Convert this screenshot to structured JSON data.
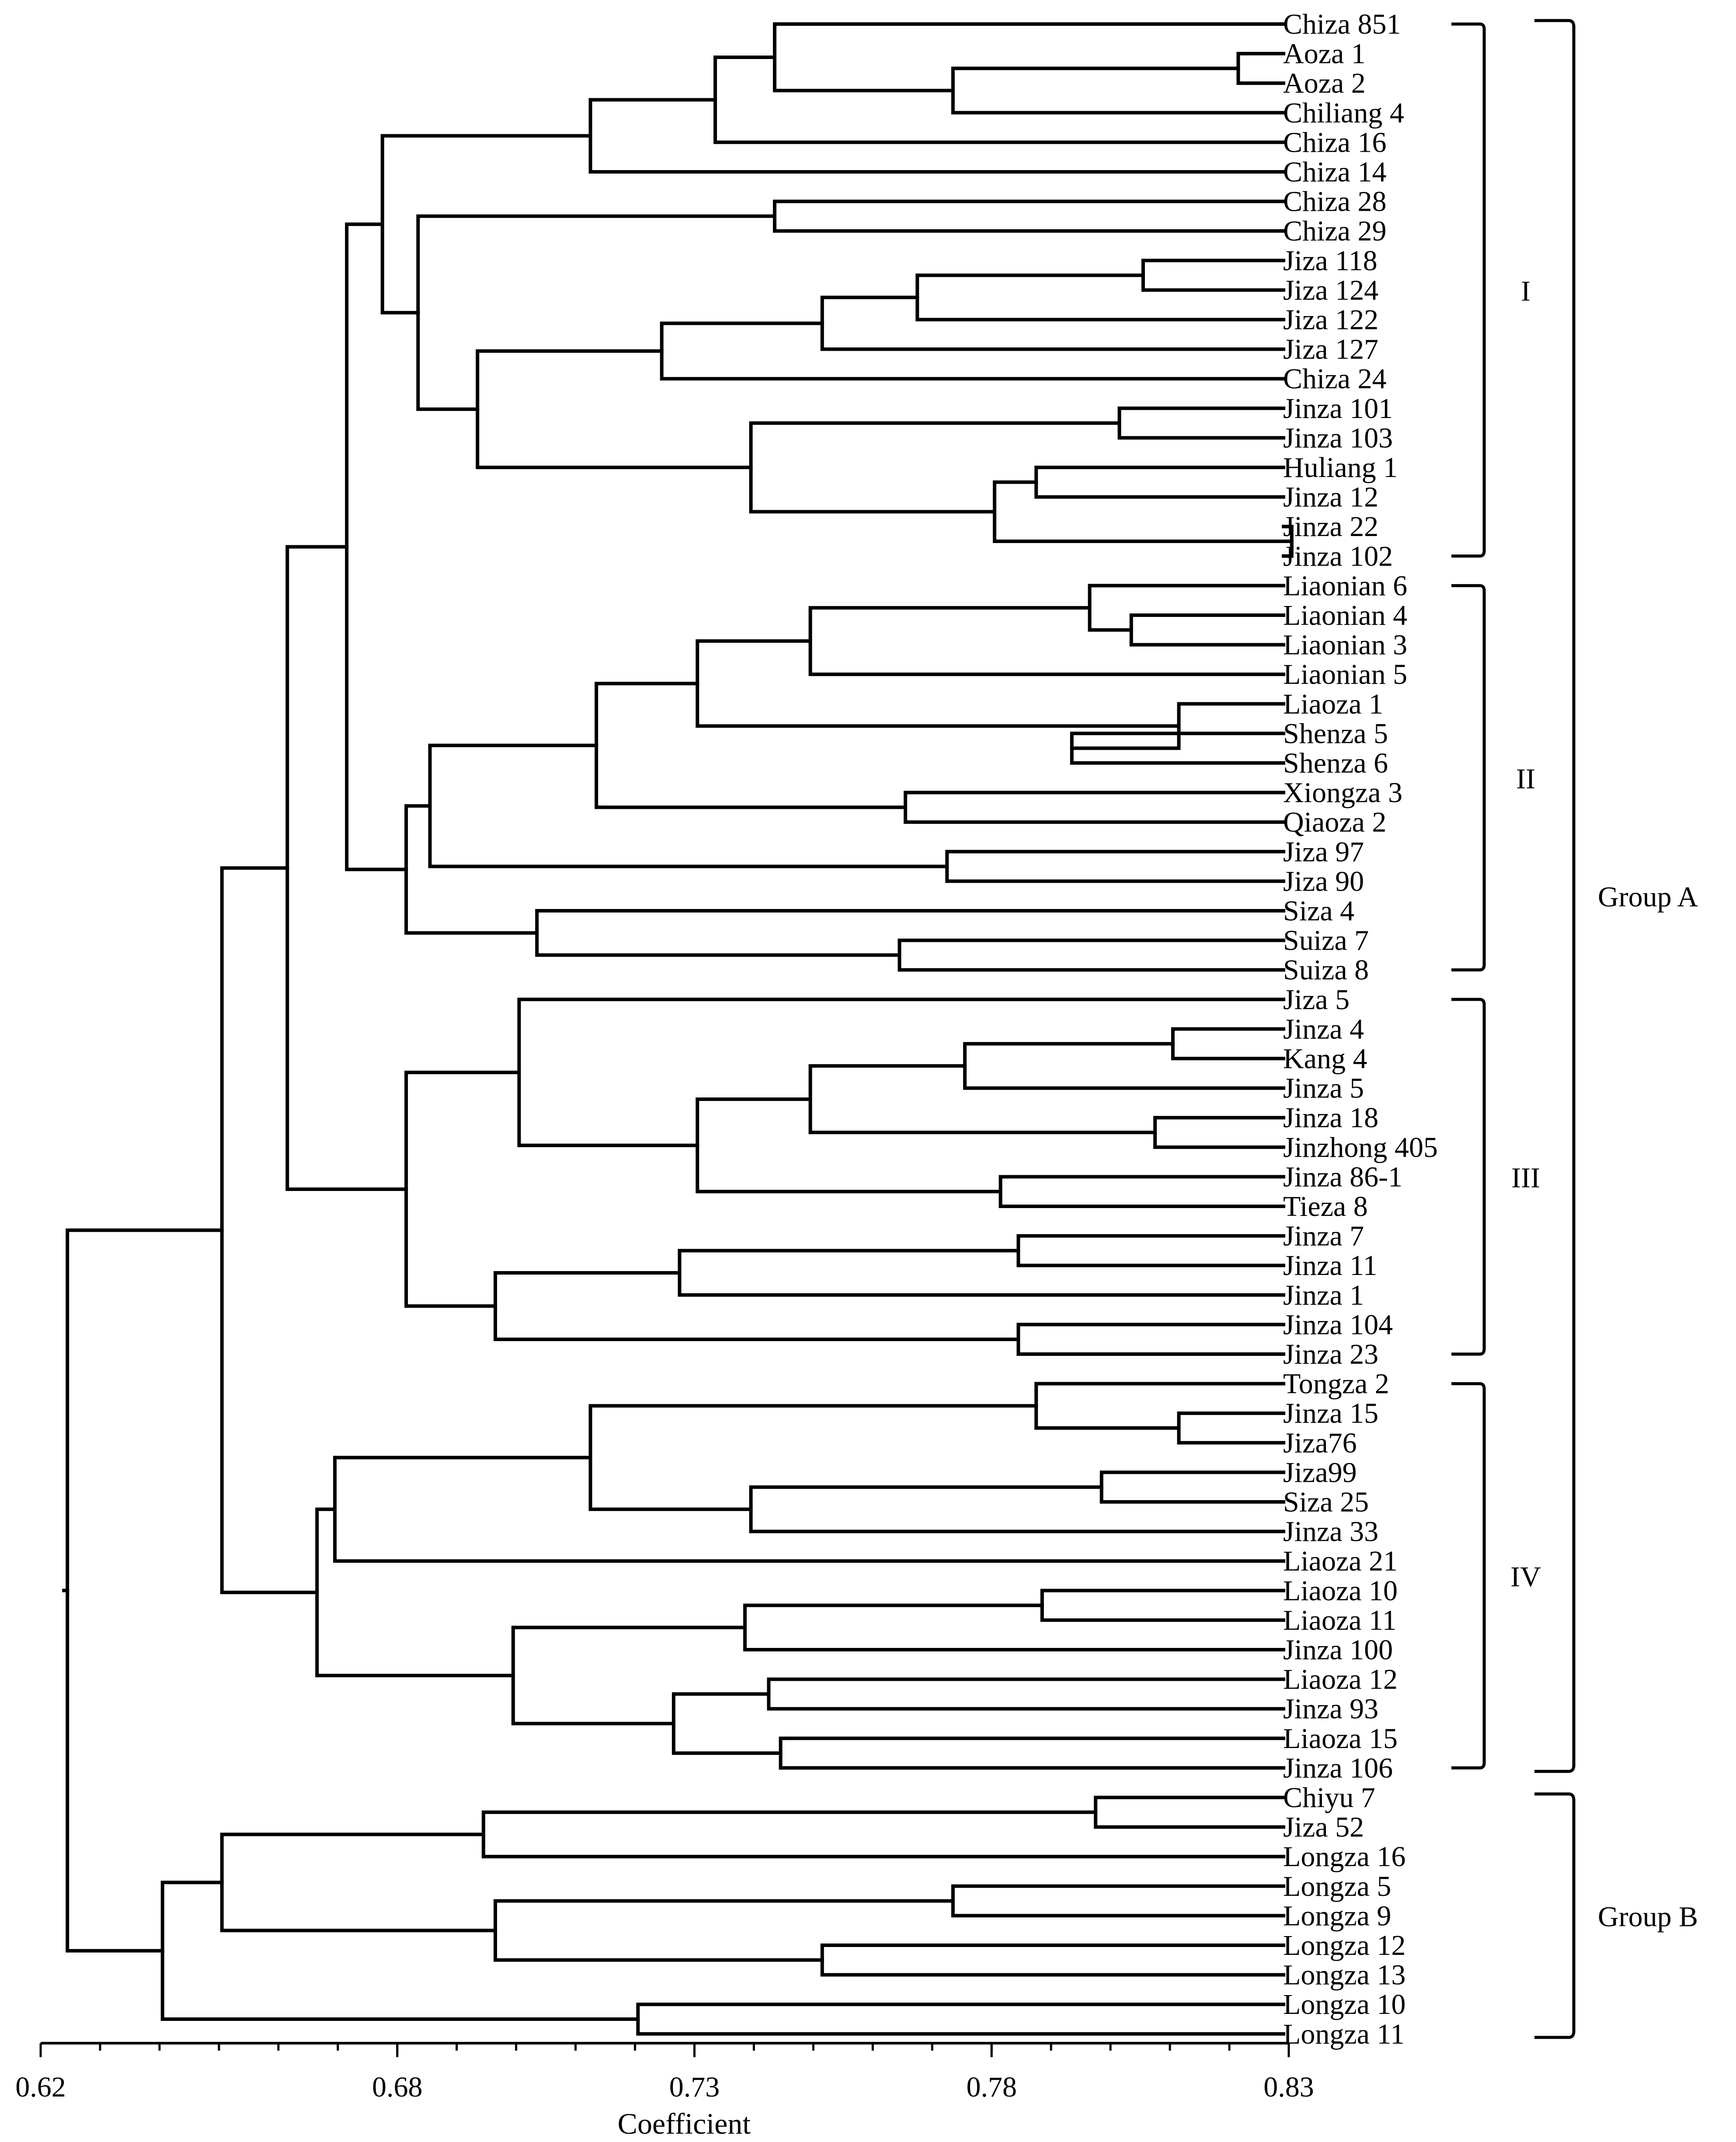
{
  "chart_data": {
    "type": "dendrogram",
    "xlabel": "Coefficient",
    "xlim": [
      0.62,
      0.83
    ],
    "ticks": [
      0.62,
      0.68,
      0.73,
      0.78,
      0.83
    ],
    "tick_labels": [
      "0.62",
      "0.68",
      "0.73",
      "0.78",
      "0.83"
    ],
    "leaves": [
      "Chiza 851",
      "Aoza 1",
      "Aoza 2",
      "Chiliang 4",
      "Chiza 16",
      "Chiza 14",
      "Chiza 28",
      "Chiza 29",
      "Jiza 118",
      "Jiza 124",
      "Jiza 122",
      "Jiza 127",
      "Chiza 24",
      "Jinza 101",
      "Jinza 103",
      "Huliang 1",
      "Jinza 12",
      "Jinza 22",
      "Jinza 102",
      "Liaonian 6",
      "Liaonian 4",
      "Liaonian 3",
      "Liaonian 5",
      "Liaoza 1",
      "Shenza 5",
      "Shenza 6",
      "Xiongza 3",
      "Qiaoza 2",
      "Jiza 97",
      "Jiza 90",
      "Siza 4",
      "Suiza 7",
      "Suiza 8",
      "Jiza 5",
      "Jinza 4",
      "Kang 4",
      "Jinza 5",
      "Jinza 18",
      "Jinzhong 405",
      "Jinza 86-1",
      "Tieza 8",
      "Jinza 7",
      "Jinza 11",
      "Jinza 1",
      "Jinza 104",
      "Jinza 23",
      "Tongza 2",
      "Jinza 15",
      "Jiza76",
      "Jiza99",
      "Siza 25",
      "Jinza 33",
      "Liaoza 21",
      "Liaoza 10",
      "Liaoza 11",
      "Jinza 100",
      "Liaoza 12",
      "Jinza 93",
      "Liaoza 15",
      "Jinza 106",
      "Chiyu 7",
      "Jiza 52",
      "Longza 16",
      "Longza 5",
      "Longza 9",
      "Longza 12",
      "Longza 13",
      "Longza 10",
      "Longza 11"
    ],
    "merges": [
      {
        "a": "L1",
        "b": "L2",
        "h": 0.8215,
        "id": "n_ao"
      },
      {
        "a": "n_ao",
        "b": "L3",
        "h": 0.7735,
        "id": "n_aoch"
      },
      {
        "a": "L0",
        "b": "n_aoch",
        "h": 0.7435,
        "id": "n_c851"
      },
      {
        "a": "n_c851",
        "b": "L4",
        "h": 0.7335,
        "id": "n_c16"
      },
      {
        "a": "n_c16",
        "b": "L5",
        "h": 0.7125,
        "id": "n_c14"
      },
      {
        "a": "L6",
        "b": "L7",
        "h": 0.7435,
        "id": "n_c28"
      },
      {
        "a": "L8",
        "b": "L9",
        "h": 0.8055,
        "id": "n_j118"
      },
      {
        "a": "n_j118",
        "b": "L10",
        "h": 0.7675,
        "id": "n_j122"
      },
      {
        "a": "n_j122",
        "b": "L11",
        "h": 0.7515,
        "id": "n_j127"
      },
      {
        "a": "n_j127",
        "b": "L12",
        "h": 0.7245,
        "id": "n_c24"
      },
      {
        "a": "L13",
        "b": "L14",
        "h": 0.8015,
        "id": "n_j101"
      },
      {
        "a": "L17",
        "b": "L18",
        "h": 0.8305,
        "id": "n_j22"
      },
      {
        "a": "L15",
        "b": "L16",
        "h": 0.7875,
        "id": "n_hu"
      },
      {
        "a": "n_hu",
        "b": "n_j22",
        "h": 0.7805,
        "id": "n_hj"
      },
      {
        "a": "n_j101",
        "b": "n_hj",
        "h": 0.7395,
        "id": "n_jinz"
      },
      {
        "a": "n_c24",
        "b": "n_jinz",
        "h": 0.6935,
        "id": "n_cj"
      },
      {
        "a": "n_c28",
        "b": "n_cj",
        "h": 0.6835,
        "id": "n_c28cj"
      },
      {
        "a": "n_c14",
        "b": "n_c28cj",
        "h": 0.6775,
        "id": "n_I"
      },
      {
        "a": "L20",
        "b": "L21",
        "h": 0.8035,
        "id": "n_ln4"
      },
      {
        "a": "L19",
        "b": "n_ln4",
        "h": 0.7965,
        "id": "n_ln6"
      },
      {
        "a": "n_ln6",
        "b": "L22",
        "h": 0.7495,
        "id": "n_ln5"
      },
      {
        "a": "L24",
        "b": "L25",
        "h": 0.7935,
        "id": "n_sh"
      },
      {
        "a": "L23",
        "b": "n_sh",
        "h": 0.8115,
        "id": "n_lzsh"
      },
      {
        "a": "n_ln5",
        "b": "n_lzsh",
        "h": 0.7305,
        "id": "n_lnall"
      },
      {
        "a": "L26",
        "b": "L27",
        "h": 0.7655,
        "id": "n_xq"
      },
      {
        "a": "n_lnall",
        "b": "n_xq",
        "h": 0.7135,
        "id": "n_lnxq"
      },
      {
        "a": "L28",
        "b": "L29",
        "h": 0.7725,
        "id": "n_j97"
      },
      {
        "a": "n_lnxq",
        "b": "n_j97",
        "h": 0.6855,
        "id": "n_IIa"
      },
      {
        "a": "L31",
        "b": "L32",
        "h": 0.7645,
        "id": "n_suiza"
      },
      {
        "a": "L30",
        "b": "n_suiza",
        "h": 0.7035,
        "id": "n_siza"
      },
      {
        "a": "n_IIa",
        "b": "n_siza",
        "h": 0.6815,
        "id": "n_II"
      },
      {
        "a": "n_I",
        "b": "n_II",
        "h": 0.6715,
        "id": "n_III_I"
      },
      {
        "a": "L34",
        "b": "L35",
        "h": 0.8105,
        "id": "n_j4"
      },
      {
        "a": "n_j4",
        "b": "L36",
        "h": 0.7755,
        "id": "n_j4k"
      },
      {
        "a": "L37",
        "b": "L38",
        "h": 0.8075,
        "id": "n_j18"
      },
      {
        "a": "n_j4k",
        "b": "n_j18",
        "h": 0.7495,
        "id": "n_j4j18"
      },
      {
        "a": "L39",
        "b": "L40",
        "h": 0.7815,
        "id": "n_j86"
      },
      {
        "a": "n_j4j18",
        "b": "n_j86",
        "h": 0.7305,
        "id": "n_IIIa"
      },
      {
        "a": "L33",
        "b": "n_IIIa",
        "h": 0.7005,
        "id": "n_j5"
      },
      {
        "a": "L41",
        "b": "L42",
        "h": 0.7845,
        "id": "n_j7"
      },
      {
        "a": "n_j7",
        "b": "L43",
        "h": 0.7275,
        "id": "n_j7j1"
      },
      {
        "a": "L44",
        "b": "L45",
        "h": 0.7845,
        "id": "n_j104"
      },
      {
        "a": "n_j7j1",
        "b": "n_j104",
        "h": 0.6965,
        "id": "n_IIIb"
      },
      {
        "a": "n_j5",
        "b": "n_IIIb",
        "h": 0.6815,
        "id": "n_III"
      },
      {
        "a": "n_III_I",
        "b": "n_III",
        "h": 0.6615,
        "id": "n_A1"
      },
      {
        "a": "L47",
        "b": "L48",
        "h": 0.8115,
        "id": "n_j15"
      },
      {
        "a": "L46",
        "b": "n_j15",
        "h": 0.7875,
        "id": "n_tong"
      },
      {
        "a": "L49",
        "b": "L50",
        "h": 0.7985,
        "id": "n_j99"
      },
      {
        "a": "n_j99",
        "b": "L51",
        "h": 0.7395,
        "id": "n_j99b"
      },
      {
        "a": "n_tong",
        "b": "n_j99b",
        "h": 0.7125,
        "id": "n_IVa"
      },
      {
        "a": "n_IVa",
        "b": "L52",
        "h": 0.6695,
        "id": "n_IVb"
      },
      {
        "a": "L53",
        "b": "L54",
        "h": 0.7885,
        "id": "n_lz10"
      },
      {
        "a": "n_lz10",
        "b": "L55",
        "h": 0.7385,
        "id": "n_lz10b"
      },
      {
        "a": "L56",
        "b": "L57",
        "h": 0.7425,
        "id": "n_lz12"
      },
      {
        "a": "L58",
        "b": "L59",
        "h": 0.7445,
        "id": "n_lz15"
      },
      {
        "a": "n_lz12",
        "b": "n_lz15",
        "h": 0.7265,
        "id": "n_lz1215"
      },
      {
        "a": "n_lz10b",
        "b": "n_lz1215",
        "h": 0.6995,
        "id": "n_IVc"
      },
      {
        "a": "n_IVb",
        "b": "n_IVc",
        "h": 0.6665,
        "id": "n_IV"
      },
      {
        "a": "n_A1",
        "b": "n_IV",
        "h": 0.6505,
        "id": "n_A"
      },
      {
        "a": "L60",
        "b": "L61",
        "h": 0.7975,
        "id": "n_chiyu"
      },
      {
        "a": "n_chiyu",
        "b": "L62",
        "h": 0.6945,
        "id": "n_cl16"
      },
      {
        "a": "L63",
        "b": "L64",
        "h": 0.7735,
        "id": "n_lz5"
      },
      {
        "a": "L65",
        "b": "L66",
        "h": 0.7515,
        "id": "n_lz1213"
      },
      {
        "a": "n_lz5",
        "b": "n_lz1213",
        "h": 0.6965,
        "id": "n_lzB"
      },
      {
        "a": "n_cl16",
        "b": "n_lzB",
        "h": 0.6505,
        "id": "n_B1"
      },
      {
        "a": "L67",
        "b": "L68",
        "h": 0.7205,
        "id": "n_lz1011"
      },
      {
        "a": "n_B1",
        "b": "n_lz1011",
        "h": 0.6405,
        "id": "n_B"
      },
      {
        "a": "n_A",
        "b": "n_B",
        "h": 0.6245,
        "id": "root"
      }
    ],
    "clusters": [
      {
        "label": "I",
        "first": 0,
        "last": 18
      },
      {
        "label": "II",
        "first": 19,
        "last": 32
      },
      {
        "label": "III",
        "first": 33,
        "last": 45
      },
      {
        "label": "IV",
        "first": 46,
        "last": 59
      }
    ],
    "groups": [
      {
        "label": "Group A",
        "first": 0,
        "last": 59
      },
      {
        "label": "Group B",
        "first": 60,
        "last": 68
      }
    ]
  }
}
